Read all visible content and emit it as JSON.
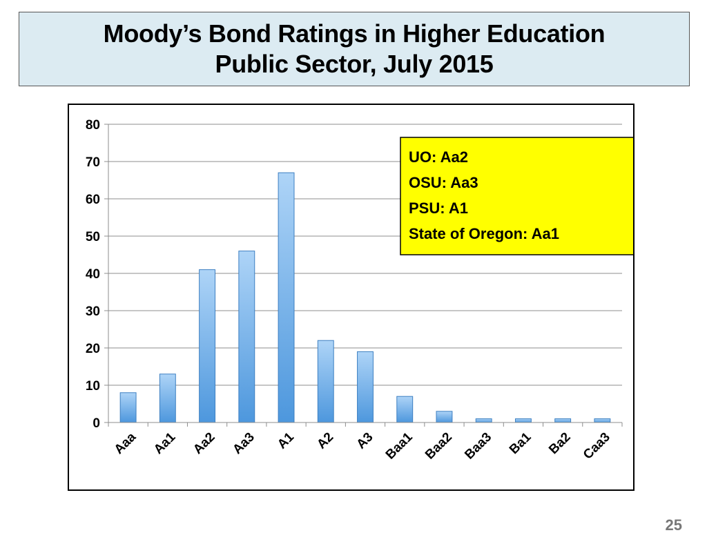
{
  "slide": {
    "title_line1": "Moody’s Bond Ratings in Higher Education",
    "title_line2": "Public Sector, July 2015",
    "page_number": "25"
  },
  "annotation": {
    "lines": [
      "UO: Aa2",
      "OSU: Aa3",
      "PSU: A1",
      "State of Oregon: Aa1"
    ],
    "background_color": "#ffff00"
  },
  "chart_data": {
    "type": "bar",
    "title": "",
    "xlabel": "",
    "ylabel": "",
    "categories": [
      "Aaa",
      "Aa1",
      "Aa2",
      "Aa3",
      "A1",
      "A2",
      "A3",
      "Baa1",
      "Baa2",
      "Baa3",
      "Ba1",
      "Ba2",
      "Caa3"
    ],
    "values": [
      8,
      13,
      41,
      46,
      67,
      22,
      19,
      7,
      3,
      1,
      1,
      1,
      1
    ],
    "ylim": [
      0,
      80
    ],
    "yticks": [
      0,
      10,
      20,
      30,
      40,
      50,
      60,
      70,
      80
    ],
    "grid": true,
    "legend": "none",
    "bar_color": "#6aaee8"
  }
}
